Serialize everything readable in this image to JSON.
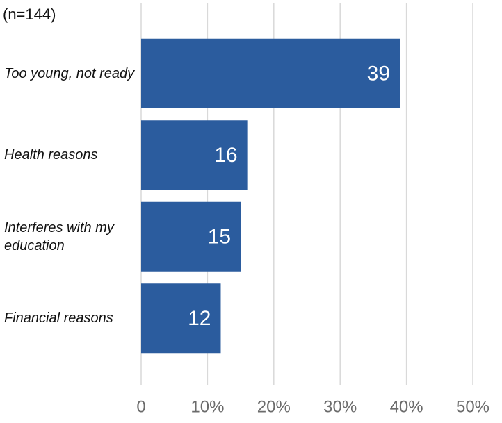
{
  "chart_data": {
    "type": "bar",
    "orientation": "horizontal",
    "subtitle": "(n=144)",
    "categories": [
      "Too young, not ready",
      "Health reasons",
      "Interferes with my education",
      "Financial reasons"
    ],
    "values": [
      39,
      16,
      15,
      12
    ],
    "color": "#2b5c9e",
    "xlim": [
      0,
      50
    ],
    "xticks": [
      0,
      {
        "value": 10,
        "label": "10%"
      },
      {
        "value": 20,
        "label": "20%"
      },
      {
        "value": 30,
        "label": "30%"
      },
      {
        "value": 40,
        "label": "40%"
      },
      {
        "value": 50,
        "label": "50%"
      }
    ],
    "grid": true
  }
}
